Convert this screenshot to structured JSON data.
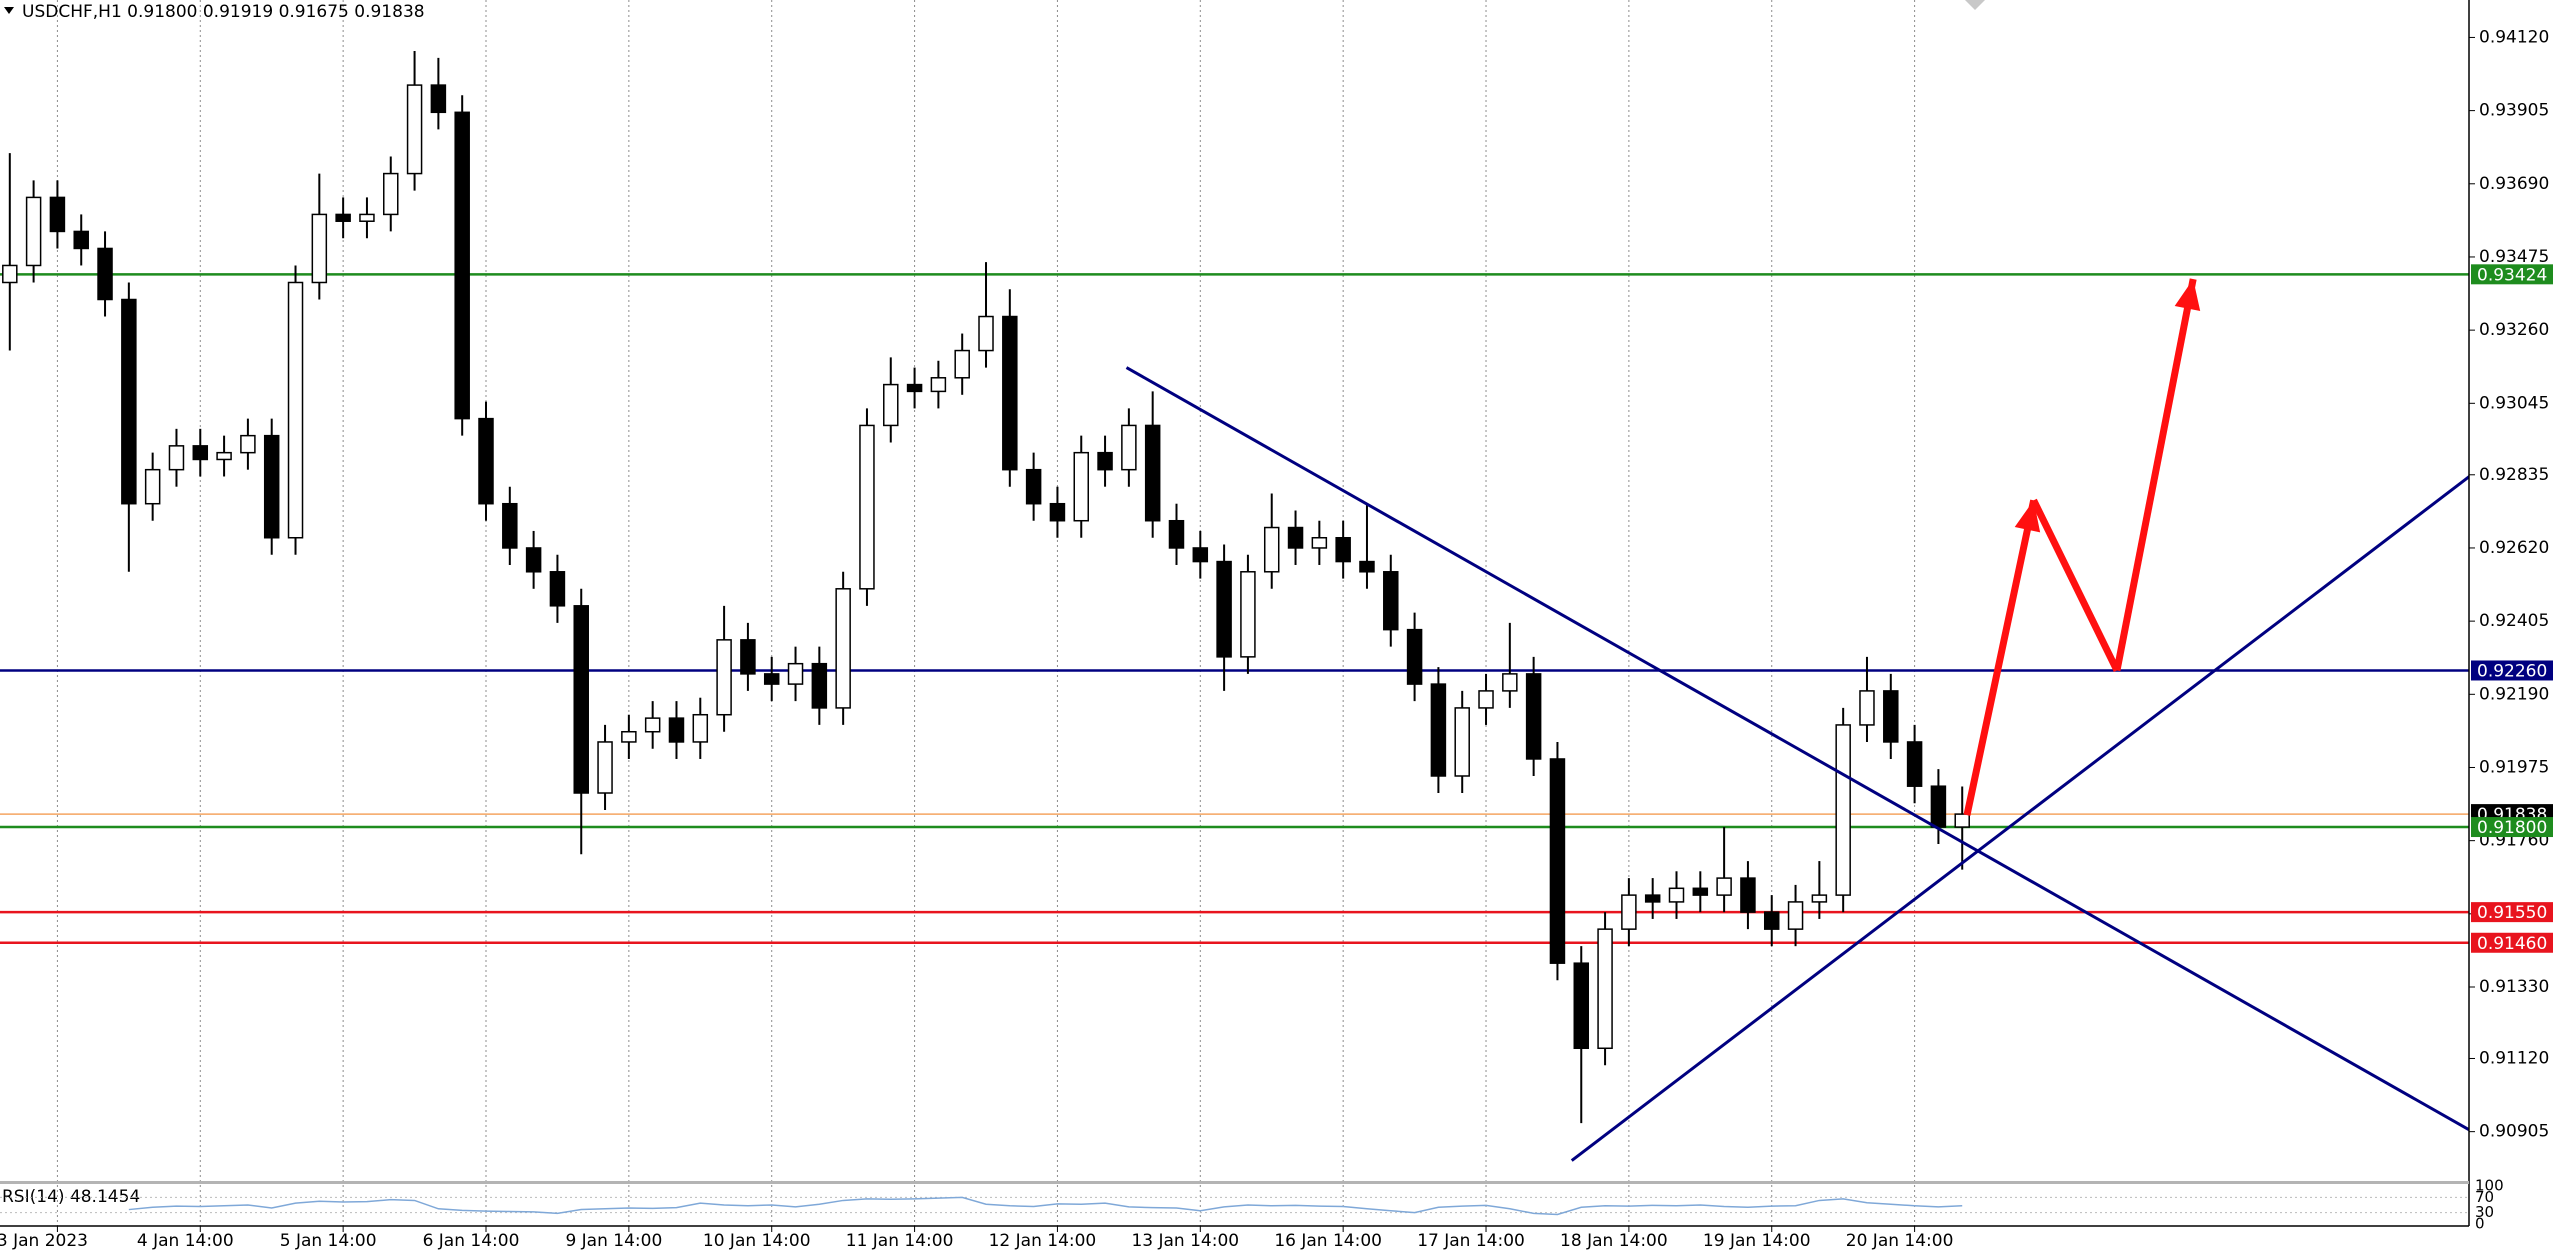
{
  "chart_data": {
    "type": "candlestick",
    "title": "USDCHF,H1 0.91800 0.91919 0.91675 0.91838",
    "open": [
      0.934,
      0.9345,
      0.9365,
      0.9355,
      0.935,
      0.9335,
      0.9275,
      0.9285,
      0.9292,
      0.9288,
      0.929,
      0.9295,
      0.9265,
      0.934,
      0.936,
      0.9358,
      0.936,
      0.9372,
      0.9398,
      0.939,
      0.93,
      0.9275,
      0.9262,
      0.9255,
      0.9245,
      0.919,
      0.9205,
      0.9208,
      0.9212,
      0.9205,
      0.9213,
      0.9235,
      0.9225,
      0.9222,
      0.9228,
      0.9215,
      0.925,
      0.9298,
      0.931,
      0.9308,
      0.9312,
      0.932,
      0.933,
      0.9285,
      0.9275,
      0.927,
      0.929,
      0.9285,
      0.9298,
      0.927,
      0.9262,
      0.9258,
      0.923,
      0.9255,
      0.9268,
      0.9262,
      0.9265,
      0.9258,
      0.9255,
      0.9238,
      0.9222,
      0.9195,
      0.9215,
      0.922,
      0.9225,
      0.92,
      0.914,
      0.9115,
      0.915,
      0.916,
      0.9158,
      0.9162,
      0.916,
      0.9165,
      0.9155,
      0.915,
      0.9158,
      0.916,
      0.921,
      0.922,
      0.9205,
      0.9192,
      0.918
    ],
    "high": [
      0.9378,
      0.937,
      0.937,
      0.936,
      0.9355,
      0.934,
      0.929,
      0.9297,
      0.9297,
      0.9295,
      0.93,
      0.93,
      0.9345,
      0.9372,
      0.9365,
      0.9365,
      0.9377,
      0.9408,
      0.9406,
      0.9395,
      0.9305,
      0.928,
      0.9267,
      0.926,
      0.925,
      0.921,
      0.9213,
      0.9217,
      0.9217,
      0.9218,
      0.9245,
      0.924,
      0.923,
      0.9233,
      0.9233,
      0.9255,
      0.9303,
      0.9318,
      0.9315,
      0.9317,
      0.9325,
      0.9346,
      0.9338,
      0.929,
      0.928,
      0.9295,
      0.9295,
      0.9303,
      0.9308,
      0.9275,
      0.9267,
      0.9263,
      0.926,
      0.9278,
      0.9273,
      0.927,
      0.927,
      0.9275,
      0.926,
      0.9243,
      0.9227,
      0.922,
      0.9225,
      0.924,
      0.923,
      0.9205,
      0.9145,
      0.9155,
      0.9165,
      0.9165,
      0.9167,
      0.9167,
      0.918,
      0.917,
      0.916,
      0.9163,
      0.917,
      0.9215,
      0.923,
      0.9225,
      0.921,
      0.9197,
      0.91919
    ],
    "low": [
      0.932,
      0.934,
      0.935,
      0.9345,
      0.933,
      0.9255,
      0.927,
      0.928,
      0.9283,
      0.9283,
      0.9285,
      0.926,
      0.926,
      0.9335,
      0.9353,
      0.9353,
      0.9355,
      0.9367,
      0.9385,
      0.9295,
      0.927,
      0.9257,
      0.925,
      0.924,
      0.9172,
      0.9185,
      0.92,
      0.9203,
      0.92,
      0.92,
      0.9208,
      0.922,
      0.9217,
      0.9217,
      0.921,
      0.921,
      0.9245,
      0.9293,
      0.9303,
      0.9303,
      0.9307,
      0.9315,
      0.928,
      0.927,
      0.9265,
      0.9265,
      0.928,
      0.928,
      0.9265,
      0.9257,
      0.9253,
      0.922,
      0.9225,
      0.925,
      0.9257,
      0.9257,
      0.9253,
      0.925,
      0.9233,
      0.9217,
      0.919,
      0.919,
      0.921,
      0.9215,
      0.9195,
      0.9135,
      0.9093,
      0.911,
      0.9145,
      0.9153,
      0.9153,
      0.9155,
      0.9155,
      0.915,
      0.9145,
      0.9145,
      0.9153,
      0.9155,
      0.9205,
      0.92,
      0.9187,
      0.9175,
      0.91675
    ],
    "close": [
      0.9345,
      0.9365,
      0.9355,
      0.935,
      0.9335,
      0.9275,
      0.9285,
      0.9292,
      0.9288,
      0.929,
      0.9295,
      0.9265,
      0.934,
      0.936,
      0.9358,
      0.936,
      0.9372,
      0.9398,
      0.939,
      0.93,
      0.9275,
      0.9262,
      0.9255,
      0.9245,
      0.919,
      0.9205,
      0.9208,
      0.9212,
      0.9205,
      0.9213,
      0.9235,
      0.9225,
      0.9222,
      0.9228,
      0.9215,
      0.925,
      0.9298,
      0.931,
      0.9308,
      0.9312,
      0.932,
      0.933,
      0.9285,
      0.9275,
      0.927,
      0.929,
      0.9285,
      0.9298,
      0.927,
      0.9262,
      0.9258,
      0.923,
      0.9255,
      0.9268,
      0.9262,
      0.9265,
      0.9258,
      0.9255,
      0.9238,
      0.9222,
      0.9195,
      0.9215,
      0.922,
      0.9225,
      0.92,
      0.914,
      0.9115,
      0.915,
      0.916,
      0.9158,
      0.9162,
      0.916,
      0.9165,
      0.9155,
      0.915,
      0.9158,
      0.916,
      0.921,
      0.922,
      0.9205,
      0.9192,
      0.918,
      0.91838
    ],
    "ylim": [
      0.9076,
      0.9423
    ],
    "yticks": [
      {
        "value": 0.9412,
        "label": "0.94120"
      },
      {
        "value": 0.93905,
        "label": "0.93905"
      },
      {
        "value": 0.9369,
        "label": "0.93690"
      },
      {
        "value": 0.93475,
        "label": "0.93475"
      },
      {
        "value": 0.9326,
        "label": "0.93260"
      },
      {
        "value": 0.93045,
        "label": "0.93045"
      },
      {
        "value": 0.92835,
        "label": "0.92835"
      },
      {
        "value": 0.9262,
        "label": "0.92620"
      },
      {
        "value": 0.92405,
        "label": "0.92405"
      },
      {
        "value": 0.9219,
        "label": "0.92190"
      },
      {
        "value": 0.91975,
        "label": "0.91975"
      },
      {
        "value": 0.9176,
        "label": "0.91760"
      },
      {
        "value": 0.91545,
        "label": "0.91545"
      },
      {
        "value": 0.9133,
        "label": "0.91330"
      },
      {
        "value": 0.9112,
        "label": "0.91120"
      },
      {
        "value": 0.90905,
        "label": "0.90905"
      }
    ],
    "xticks": [
      {
        "value": 2,
        "label": "3 Jan 2023"
      },
      {
        "value": 8,
        "label": "4 Jan 14:00"
      },
      {
        "value": 14,
        "label": "5 Jan 14:00"
      },
      {
        "value": 20,
        "label": "6 Jan 14:00"
      },
      {
        "value": 26,
        "label": "9 Jan 14:00"
      },
      {
        "value": 32,
        "label": "10 Jan 14:00"
      },
      {
        "value": 38,
        "label": "11 Jan 14:00"
      },
      {
        "value": 44,
        "label": "12 Jan 14:00"
      },
      {
        "value": 50,
        "label": "13 Jan 14:00"
      },
      {
        "value": 56,
        "label": "16 Jan 14:00"
      },
      {
        "value": 62,
        "label": "17 Jan 14:00"
      },
      {
        "value": 68,
        "label": "18 Jan 14:00"
      },
      {
        "value": 74,
        "label": "19 Jan 14:00"
      },
      {
        "value": 80,
        "label": "20 Jan 14:00"
      }
    ],
    "grid": true,
    "up_color": "#ffffff",
    "down_color": "#000000",
    "levels": [
      {
        "value": 0.93424,
        "label": "0.93424",
        "color": "#1e8c1e",
        "label_color": "#1e8c1e"
      },
      {
        "value": 0.9226,
        "label": "0.92260",
        "color": "#000080",
        "label_color": "#000080"
      },
      {
        "value": 0.91838,
        "label": "0.91838",
        "color": "#f4a460",
        "label_color": "#000000"
      },
      {
        "value": 0.918,
        "label": "0.91800",
        "color": "#1e8c1e",
        "label_color": "#1e8c1e"
      },
      {
        "value": 0.9155,
        "label": "0.91550",
        "color": "#e8141e",
        "label_color": "#e8141e"
      },
      {
        "value": 0.9146,
        "label": "0.91460",
        "color": "#e8141e",
        "label_color": "#e8141e"
      }
    ],
    "drawings": [
      {
        "color": "#000080",
        "x": [
          46.9,
          103.3
        ],
        "y": [
          0.9315,
          0.9091
        ]
      },
      {
        "color": "#000080",
        "x": [
          65.6,
          103.3
        ],
        "y": [
          0.9082,
          0.9283
        ]
      },
      {
        "color": "#ff1010",
        "x": [
          82.2,
          85.0,
          88.5,
          91.7
        ],
        "y": [
          0.91835,
          0.9276,
          0.9226,
          0.9341
        ]
      }
    ],
    "rsi": {
      "label": "RSI(14) 48.1454",
      "color": "#7fa8d8",
      "ylim": [
        0,
        100
      ],
      "yticks": [
        100,
        70,
        30,
        0
      ],
      "values": [
        null,
        null,
        null,
        null,
        null,
        38,
        44,
        47,
        46,
        48,
        50,
        42,
        55,
        60,
        58,
        59,
        64,
        62,
        40,
        36,
        34,
        33,
        32,
        28,
        38,
        40,
        42,
        41,
        43,
        55,
        50,
        48,
        50,
        45,
        52,
        62,
        66,
        65,
        66,
        68,
        70,
        52,
        48,
        46,
        53,
        52,
        55,
        45,
        43,
        42,
        35,
        45,
        50,
        48,
        49,
        47,
        46,
        40,
        35,
        30,
        44,
        47,
        49,
        40,
        28,
        25,
        44,
        48,
        47,
        49,
        48,
        50,
        46,
        44,
        47,
        48,
        62,
        66,
        56,
        52,
        48,
        45,
        48.1454
      ]
    }
  }
}
